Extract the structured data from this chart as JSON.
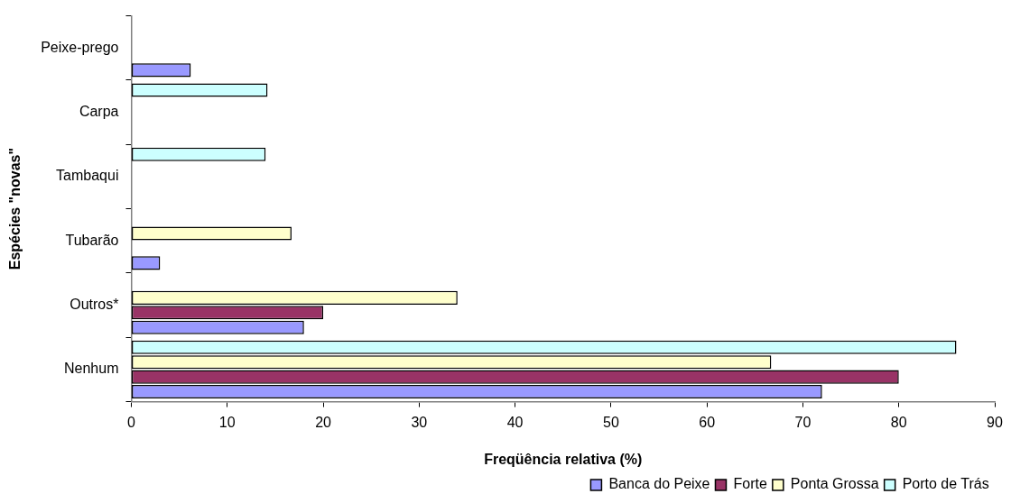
{
  "chart_data": {
    "type": "bar",
    "orientation": "horizontal",
    "categories": [
      "Peixe-prego",
      "Carpa",
      "Tambaqui",
      "Tubarão",
      "Outros*",
      "Nenhum"
    ],
    "series": [
      {
        "name": "Banca do Peixe",
        "color": "#9999ff",
        "values": [
          6.2,
          null,
          null,
          3,
          18,
          72
        ]
      },
      {
        "name": "Forte",
        "color": "#993366",
        "values": [
          null,
          null,
          null,
          null,
          20,
          80
        ]
      },
      {
        "name": "Ponta Grossa",
        "color": "#ffffcc",
        "values": [
          null,
          null,
          null,
          16.7,
          34,
          66.7
        ]
      },
      {
        "name": "Porto de Trás",
        "color": "#ccffff",
        "values": [
          null,
          14.2,
          14,
          null,
          null,
          86
        ]
      }
    ],
    "xlim": [
      0,
      90
    ],
    "xticks": [
      0,
      10,
      20,
      30,
      40,
      50,
      60,
      70,
      80,
      90
    ],
    "xlabel": "Freqüência relativa (%)",
    "ylabel": "Espécies \"novas\"",
    "grid": false,
    "legend": "bottom"
  }
}
